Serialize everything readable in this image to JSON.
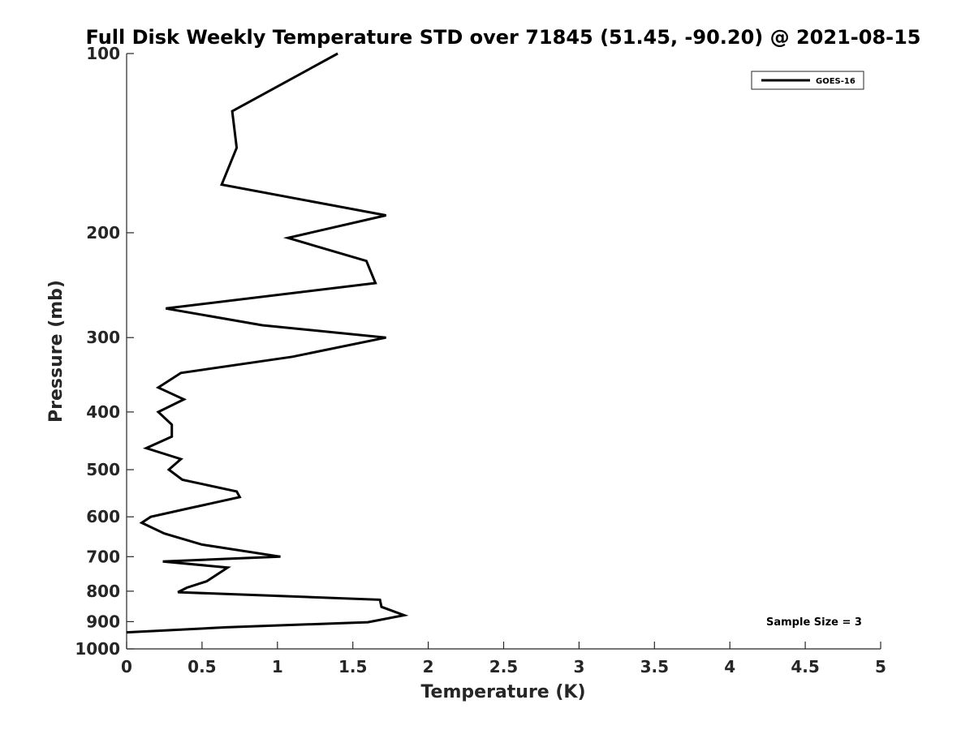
{
  "chart_data": {
    "type": "line",
    "title": "Full Disk Weekly Temperature STD over 71845 (51.45, -90.20) @ 2021-08-15",
    "xlabel": "Temperature (K)",
    "ylabel": "Pressure (mb)",
    "xlim": [
      0,
      5
    ],
    "ylim": [
      100,
      1000
    ],
    "y_scale": "log",
    "y_reversed": true,
    "x_ticks": [
      "0",
      "0.5",
      "1",
      "1.5",
      "2",
      "2.5",
      "3",
      "3.5",
      "4",
      "4.5",
      "5"
    ],
    "y_ticks": [
      "100",
      "200",
      "300",
      "400",
      "500",
      "600",
      "700",
      "800",
      "900",
      "1000"
    ],
    "grid": false,
    "legend": {
      "position": "top-right",
      "entries": [
        "GOES-16"
      ]
    },
    "annotation": "Sample Size = 3",
    "series": [
      {
        "name": "GOES-16",
        "color": "#000000",
        "points": [
          [
            1.4,
            100
          ],
          [
            0.7,
            125
          ],
          [
            0.73,
            144
          ],
          [
            0.63,
            166
          ],
          [
            1.72,
            187
          ],
          [
            1.07,
            204
          ],
          [
            1.59,
            223
          ],
          [
            1.65,
            243
          ],
          [
            0.26,
            268
          ],
          [
            0.9,
            286
          ],
          [
            1.72,
            300
          ],
          [
            1.1,
            323
          ],
          [
            0.36,
            344
          ],
          [
            0.21,
            364
          ],
          [
            0.38,
            381
          ],
          [
            0.21,
            400
          ],
          [
            0.3,
            420
          ],
          [
            0.3,
            440
          ],
          [
            0.13,
            460
          ],
          [
            0.36,
            480
          ],
          [
            0.28,
            500
          ],
          [
            0.37,
            520
          ],
          [
            0.73,
            544
          ],
          [
            0.75,
            556
          ],
          [
            0.42,
            580
          ],
          [
            0.16,
            600
          ],
          [
            0.1,
            614
          ],
          [
            0.25,
            640
          ],
          [
            0.5,
            668
          ],
          [
            1.02,
            700
          ],
          [
            0.24,
            713
          ],
          [
            0.67,
            730
          ],
          [
            0.53,
            770
          ],
          [
            0.4,
            789
          ],
          [
            0.34,
            803
          ],
          [
            1.68,
            827
          ],
          [
            1.69,
            850
          ],
          [
            1.84,
            878
          ],
          [
            1.6,
            902
          ],
          [
            0.66,
            920
          ],
          [
            0.0,
            938
          ]
        ]
      }
    ]
  }
}
